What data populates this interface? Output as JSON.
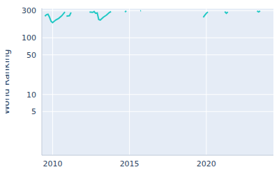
{
  "chart_data": {
    "type": "line",
    "y_label": "World Ranking",
    "log": "y",
    "grid": true,
    "color": "#1fc8c4",
    "x": [
      2009.5,
      2009.6,
      2009.7,
      2009.8,
      2009.9,
      2010.0,
      2010.2,
      2010.4,
      2010.6,
      2010.8,
      2010.85,
      2010.9,
      2011.1,
      2011.2,
      2011.8,
      2012.4,
      2012.6,
      2012.7,
      2012.8,
      2012.9,
      2013.0,
      2013.1,
      2013.3,
      2013.5,
      2013.7,
      2013.8,
      2014.3,
      2014.7,
      2014.8,
      2015.2,
      2015.7,
      2015.75,
      2017.5,
      2019.8,
      2019.9,
      2020.0,
      2020.1,
      2020.6,
      2021.2,
      2021.3,
      2021.4,
      2022.3,
      2023.3,
      2023.4,
      2023.5
    ],
    "values": [
      240,
      255,
      260,
      230,
      195,
      185,
      205,
      220,
      245,
      285,
      null,
      240,
      245,
      280,
      null,
      285,
      280,
      290,
      270,
      275,
      210,
      205,
      230,
      250,
      280,
      290,
      null,
      285,
      295,
      null,
      298,
      300,
      null,
      230,
      250,
      270,
      285,
      null,
      290,
      270,
      285,
      null,
      295,
      285,
      295
    ],
    "xlim": [
      2009.3,
      2024.5
    ],
    "xticks": [
      2010,
      2015,
      2020
    ],
    "ylim": [
      0.85,
      330
    ],
    "yticks": [
      5,
      10,
      50,
      100,
      300
    ]
  }
}
